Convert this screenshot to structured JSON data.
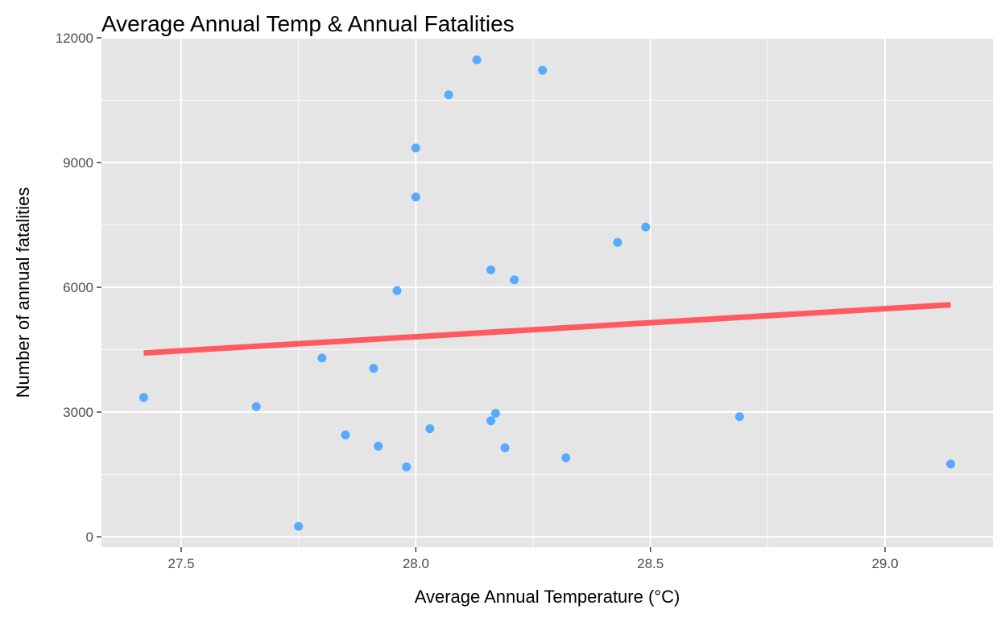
{
  "chart_data": {
    "type": "scatter",
    "title": "Average Annual Temp & Annual Fatalities",
    "xlabel": "Average Annual Temperature (°C)",
    "ylabel": "Number of annual fatalities",
    "xlim": [
      27.33,
      29.23
    ],
    "ylim": [
      -250,
      12000
    ],
    "x_ticks": [
      27.5,
      28.0,
      28.5,
      29.0
    ],
    "x_tick_labels": [
      "27.5",
      "28.0",
      "28.5",
      "29.0"
    ],
    "y_ticks": [
      0,
      3000,
      6000,
      9000,
      12000
    ],
    "y_tick_labels": [
      "0",
      "3000",
      "6000",
      "9000",
      "12000"
    ],
    "grid": true,
    "legend": "none",
    "colors": {
      "panel": "#e5e5e5",
      "grid": "#ffffff",
      "point": "#56aaff",
      "trend": "#ff5a5f"
    },
    "points": [
      {
        "x": 27.42,
        "y": 3350
      },
      {
        "x": 27.66,
        "y": 3130
      },
      {
        "x": 27.75,
        "y": 250
      },
      {
        "x": 27.8,
        "y": 4300
      },
      {
        "x": 27.85,
        "y": 2450
      },
      {
        "x": 27.91,
        "y": 4050
      },
      {
        "x": 27.92,
        "y": 2180
      },
      {
        "x": 27.96,
        "y": 5920
      },
      {
        "x": 27.98,
        "y": 1680
      },
      {
        "x": 28.0,
        "y": 9350
      },
      {
        "x": 28.0,
        "y": 8170
      },
      {
        "x": 28.03,
        "y": 2600
      },
      {
        "x": 28.07,
        "y": 10630
      },
      {
        "x": 28.13,
        "y": 11470
      },
      {
        "x": 28.16,
        "y": 6420
      },
      {
        "x": 28.16,
        "y": 2790
      },
      {
        "x": 28.17,
        "y": 2970
      },
      {
        "x": 28.19,
        "y": 2140
      },
      {
        "x": 28.21,
        "y": 6180
      },
      {
        "x": 28.27,
        "y": 11220
      },
      {
        "x": 28.32,
        "y": 1900
      },
      {
        "x": 28.43,
        "y": 7080
      },
      {
        "x": 28.49,
        "y": 7450
      },
      {
        "x": 28.69,
        "y": 2890
      },
      {
        "x": 29.14,
        "y": 1750
      }
    ],
    "trend_line": {
      "x": [
        27.42,
        29.14
      ],
      "y": [
        4420,
        5580
      ]
    }
  }
}
